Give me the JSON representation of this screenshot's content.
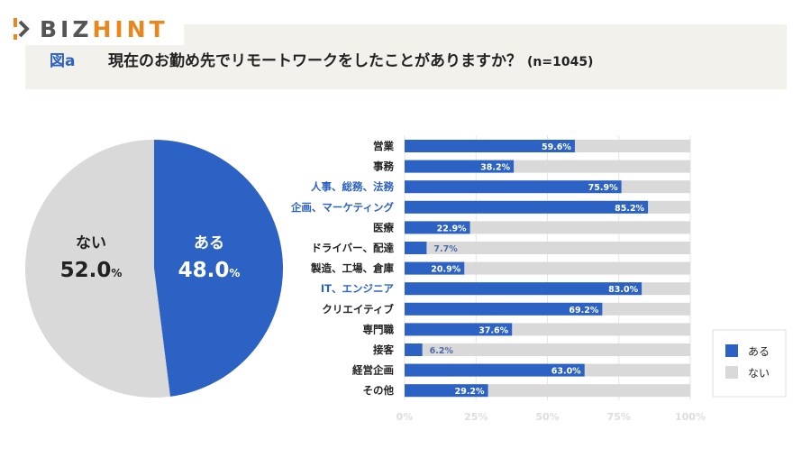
{
  "logo": {
    "part1": "BIZ",
    "part2": "HINT"
  },
  "header": {
    "figure_label": "図a",
    "title": "現在のお勤め先でリモートワークをしたことがありますか？",
    "sample": "(n=1045)"
  },
  "colors": {
    "yes": "#2c62c4",
    "no": "#d9d9d9",
    "highlight_label": "#2c62c4"
  },
  "chart_data": [
    {
      "type": "pie",
      "slices": [
        {
          "label": "ある",
          "value": 48.0,
          "display": "48.0",
          "unit": "%"
        },
        {
          "label": "ない",
          "value": 52.0,
          "display": "52.0",
          "unit": "%"
        }
      ]
    },
    {
      "type": "bar",
      "stacked": true,
      "orientation": "horizontal",
      "categories": [
        "営業",
        "事務",
        "人事、総務、法務",
        "企画、マーケティング",
        "医療",
        "ドライバー、配達",
        "製造、工場、倉庫",
        "IT、エンジニア",
        "クリエイティブ",
        "専門職",
        "接客",
        "経営企画",
        "その他"
      ],
      "highlighted": [
        "人事、総務、法務",
        "企画、マーケティング",
        "IT、エンジニア"
      ],
      "series": [
        {
          "name": "ある",
          "values": [
            59.6,
            38.2,
            75.9,
            85.2,
            22.9,
            7.7,
            20.9,
            83.0,
            69.2,
            37.6,
            6.2,
            63.0,
            29.2
          ]
        },
        {
          "name": "ない",
          "values": [
            40.4,
            61.8,
            24.1,
            14.8,
            77.1,
            92.3,
            79.1,
            17.0,
            30.8,
            62.4,
            93.8,
            37.0,
            70.8
          ]
        }
      ],
      "data_labels": [
        "59.6%",
        "38.2%",
        "75.9%",
        "85.2%",
        "22.9%",
        "7.7%",
        "20.9%",
        "83.0%",
        "69.2%",
        "37.6%",
        "6.2%",
        "63.0%",
        "29.2%"
      ],
      "xticks": [
        "0%",
        "25%",
        "50%",
        "75%",
        "100%"
      ],
      "xlim": [
        0,
        100
      ],
      "grid": true,
      "legend": "bottom-right"
    }
  ]
}
